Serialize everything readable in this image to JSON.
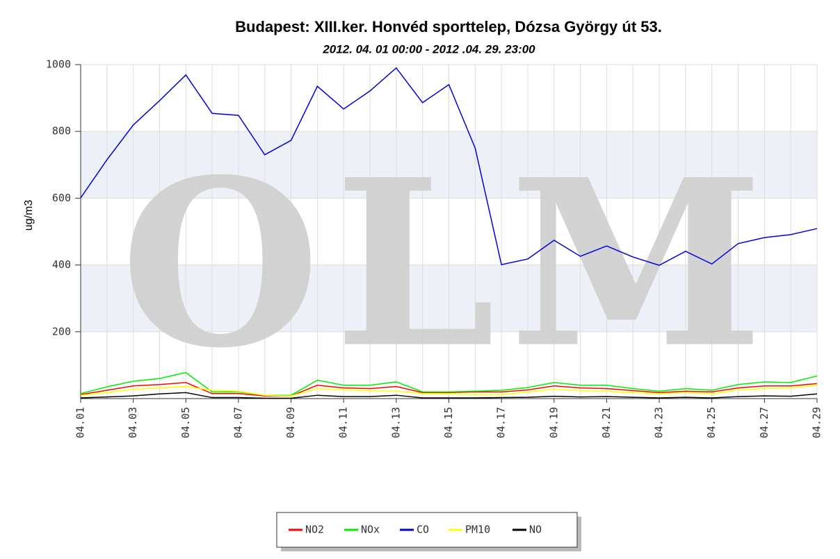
{
  "chart_data": {
    "type": "line",
    "title": "Budapest: XIII.ker. Honvéd sporttelep, Dózsa György út 53.",
    "subtitle": "2012. 04. 01 00:00 - 2012 .04. 29. 23:00",
    "y_label": "ug/m3",
    "watermark": "OLM",
    "categories": [
      "04.01",
      null,
      "04.03",
      null,
      "04.05",
      null,
      "04.07",
      null,
      "04.09",
      null,
      "04.11",
      null,
      "04.13",
      null,
      "04.15",
      null,
      "04.17",
      null,
      "04.19",
      null,
      "04.21",
      null,
      "04.23",
      null,
      "04.25",
      null,
      "04.27",
      null,
      "04.29"
    ],
    "ylim": [
      0,
      1000
    ],
    "yticks": [
      200,
      400,
      600,
      800,
      1000
    ],
    "grid": true,
    "series": [
      {
        "name": "NO2",
        "color": "#ff0000",
        "values": [
          12,
          25,
          38,
          42,
          48,
          15,
          15,
          8,
          8,
          40,
          32,
          30,
          36,
          18,
          18,
          20,
          20,
          26,
          38,
          32,
          30,
          24,
          18,
          22,
          20,
          32,
          38,
          38,
          45
        ]
      },
      {
        "name": "NOx",
        "color": "#00ee00",
        "values": [
          15,
          35,
          52,
          60,
          78,
          20,
          20,
          10,
          10,
          55,
          40,
          40,
          50,
          20,
          20,
          22,
          25,
          33,
          48,
          40,
          40,
          30,
          22,
          30,
          25,
          42,
          50,
          48,
          68
        ]
      },
      {
        "name": "CO",
        "color": "#0000dd",
        "values": [
          601,
          715,
          819,
          892,
          969,
          854,
          848,
          730,
          773,
          935,
          867,
          921,
          990,
          886,
          940,
          750,
          401,
          418,
          474,
          426,
          457,
          424,
          399,
          441,
          403,
          464,
          482,
          491,
          509
        ]
      },
      {
        "name": "PM10",
        "color": "#ffff00",
        "values": [
          10,
          18,
          28,
          32,
          36,
          25,
          22,
          10,
          8,
          30,
          26,
          24,
          22,
          15,
          14,
          12,
          12,
          20,
          28,
          24,
          22,
          18,
          14,
          18,
          14,
          26,
          30,
          32,
          40
        ]
      },
      {
        "name": "NO",
        "color": "#000000",
        "values": [
          2,
          5,
          8,
          14,
          18,
          3,
          3,
          1,
          1,
          10,
          6,
          6,
          10,
          2,
          2,
          2,
          3,
          4,
          7,
          5,
          6,
          4,
          2,
          4,
          2,
          6,
          8,
          7,
          14
        ]
      }
    ]
  }
}
